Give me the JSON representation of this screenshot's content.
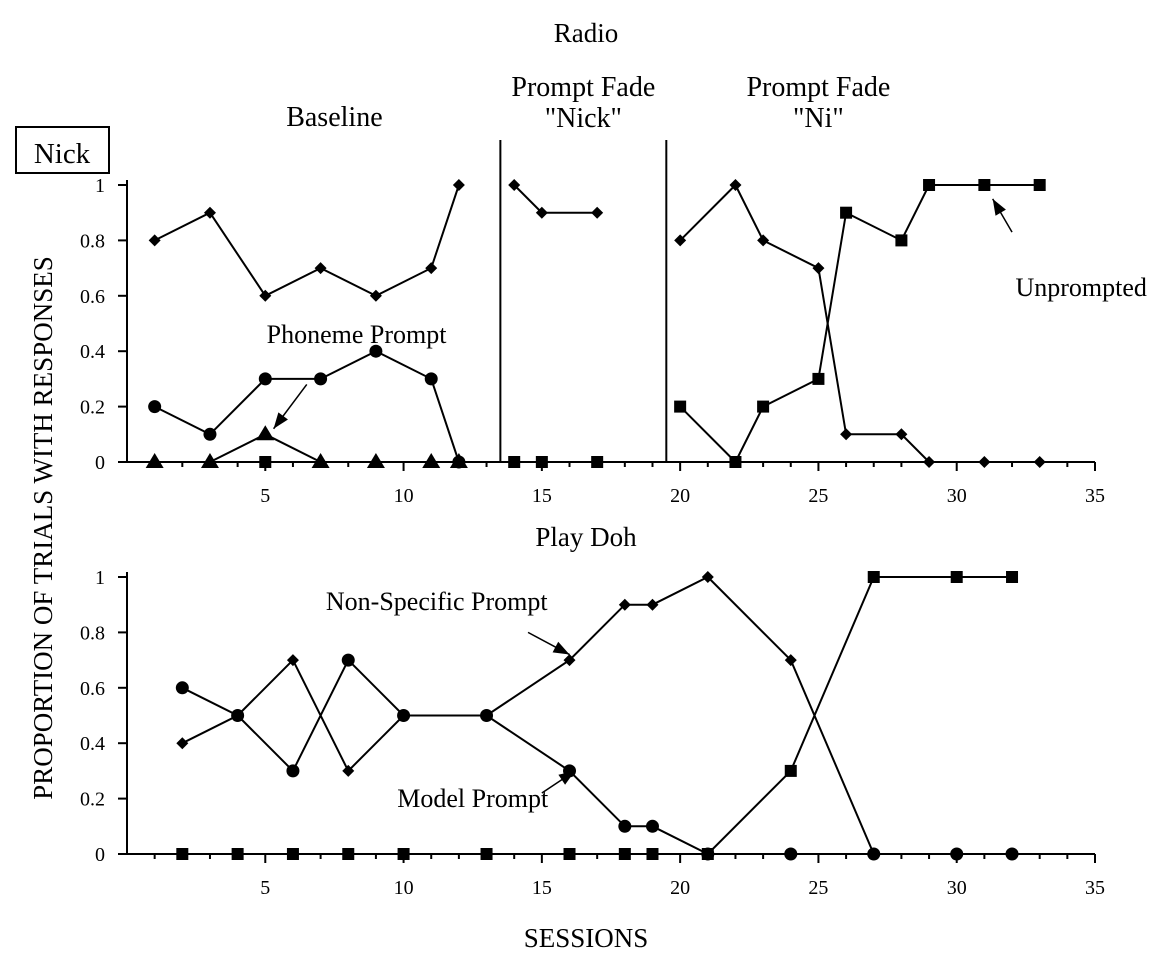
{
  "participant_label": "Nick",
  "xlabel": "SESSIONS",
  "ylabel": "PROPORTION OF TRIALS WITH RESPONSES",
  "chart_data": [
    {
      "type": "line",
      "title": "Radio",
      "xlim": [
        0,
        35
      ],
      "ylim": [
        0,
        1
      ],
      "x_ticks": [
        5,
        10,
        15,
        20,
        25,
        30,
        35
      ],
      "y_ticks": [
        0,
        0.2,
        0.4,
        0.6,
        0.8,
        1
      ],
      "phase_lines": [
        13.5,
        19.5
      ],
      "phases": [
        {
          "label": [
            "Baseline"
          ],
          "x": 7.5
        },
        {
          "label": [
            "Prompt Fade",
            "\"Nick\""
          ],
          "x": 16.5
        },
        {
          "label": [
            "Prompt Fade",
            "\"Ni\""
          ],
          "x": 25
        }
      ],
      "series": [
        {
          "marker": "diamond",
          "segments": [
            [
              [
                1,
                0.8
              ],
              [
                3,
                0.9
              ],
              [
                5,
                0.6
              ],
              [
                7,
                0.7
              ],
              [
                9,
                0.6
              ],
              [
                11,
                0.7
              ],
              [
                12,
                1.0
              ]
            ],
            [
              [
                14,
                1.0
              ],
              [
                15,
                0.9
              ],
              [
                17,
                0.9
              ]
            ],
            [
              [
                20,
                0.8
              ],
              [
                22,
                1.0
              ],
              [
                23,
                0.8
              ],
              [
                25,
                0.7
              ],
              [
                26,
                0.1
              ],
              [
                28,
                0.1
              ],
              [
                29,
                0
              ],
              [
                31,
                0
              ],
              [
                33,
                0
              ]
            ]
          ]
        },
        {
          "marker": "circle",
          "segments": [
            [
              [
                1,
                0.2
              ],
              [
                3,
                0.1
              ],
              [
                5,
                0.3
              ],
              [
                7,
                0.3
              ],
              [
                9,
                0.4
              ],
              [
                11,
                0.3
              ],
              [
                12,
                0
              ]
            ]
          ]
        },
        {
          "marker": "triangle",
          "segments": [
            [
              [
                1,
                0
              ],
              [
                3,
                0
              ],
              [
                5,
                0.1
              ],
              [
                7,
                0
              ],
              [
                9,
                0
              ],
              [
                11,
                0
              ],
              [
                12,
                0
              ]
            ]
          ]
        },
        {
          "marker": "square",
          "segments": [
            [
              [
                5,
                0
              ]
            ],
            [
              [
                14,
                0
              ],
              [
                15,
                0
              ],
              [
                17,
                0
              ]
            ],
            [
              [
                20,
                0.2
              ],
              [
                22,
                0
              ],
              [
                23,
                0.2
              ],
              [
                25,
                0.3
              ],
              [
                26,
                0.9
              ],
              [
                28,
                0.8
              ],
              [
                29,
                1.0
              ],
              [
                31,
                1.0
              ],
              [
                33,
                1.0
              ]
            ]
          ]
        }
      ],
      "annotations": [
        {
          "text": "Phoneme Prompt",
          "tx": 8.3,
          "ty": 0.43,
          "arrow_from": [
            6.5,
            0.28
          ],
          "arrow_to": [
            5.3,
            0.12
          ]
        },
        {
          "text": "Unprompted",
          "tx": 34.5,
          "ty": 0.6,
          "arrow_from": [
            32,
            0.83
          ],
          "arrow_to": [
            31.3,
            0.95
          ]
        }
      ]
    },
    {
      "type": "line",
      "title": "Play Doh",
      "xlim": [
        0,
        35
      ],
      "ylim": [
        0,
        1
      ],
      "x_ticks": [
        5,
        10,
        15,
        20,
        25,
        30,
        35
      ],
      "y_ticks": [
        0,
        0.2,
        0.4,
        0.6,
        0.8,
        1
      ],
      "phase_lines": [],
      "phases": [],
      "series": [
        {
          "marker": "diamond",
          "segments": [
            [
              [
                2,
                0.4
              ],
              [
                4,
                0.5
              ],
              [
                6,
                0.7
              ],
              [
                8,
                0.3
              ],
              [
                10,
                0.5
              ],
              [
                13,
                0.5
              ],
              [
                16,
                0.7
              ],
              [
                18,
                0.9
              ],
              [
                19,
                0.9
              ],
              [
                21,
                1.0
              ],
              [
                24,
                0.7
              ],
              [
                27,
                0
              ],
              [
                30,
                0
              ],
              [
                32,
                0
              ]
            ]
          ]
        },
        {
          "marker": "circle",
          "segments": [
            [
              [
                2,
                0.6
              ],
              [
                4,
                0.5
              ],
              [
                6,
                0.3
              ],
              [
                8,
                0.7
              ],
              [
                10,
                0.5
              ],
              [
                13,
                0.5
              ],
              [
                16,
                0.3
              ],
              [
                18,
                0.1
              ],
              [
                19,
                0.1
              ],
              [
                21,
                0
              ],
              [
                24,
                0
              ],
              [
                27,
                0
              ],
              [
                30,
                0
              ],
              [
                32,
                0
              ]
            ]
          ]
        },
        {
          "marker": "square",
          "segments": [
            [
              [
                2,
                0
              ],
              [
                4,
                0
              ],
              [
                6,
                0
              ],
              [
                8,
                0
              ],
              [
                10,
                0
              ],
              [
                13,
                0
              ],
              [
                16,
                0
              ],
              [
                18,
                0
              ],
              [
                19,
                0
              ],
              [
                21,
                0
              ],
              [
                24,
                0.3
              ],
              [
                27,
                1.0
              ],
              [
                30,
                1.0
              ],
              [
                32,
                1.0
              ]
            ]
          ]
        }
      ],
      "annotations": [
        {
          "text": "Non-Specific Prompt",
          "tx": 11.2,
          "ty": 0.88,
          "arrow_from": [
            14.5,
            0.8
          ],
          "arrow_to": [
            16,
            0.72
          ]
        },
        {
          "text": "Model Prompt",
          "tx": 12.5,
          "ty": 0.17,
          "arrow_from": [
            15,
            0.22
          ],
          "arrow_to": [
            16.2,
            0.3
          ]
        }
      ]
    }
  ]
}
